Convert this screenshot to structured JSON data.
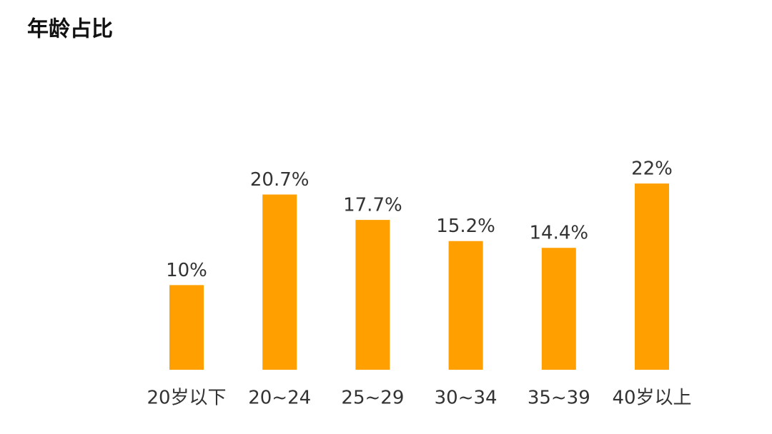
{
  "chart_data": {
    "type": "bar",
    "title": "年龄占比",
    "categories": [
      "20岁以下",
      "20~24",
      "25~29",
      "30~34",
      "35~39",
      "40岁以上"
    ],
    "values": [
      10,
      20.7,
      17.7,
      15.2,
      14.4,
      22
    ],
    "value_labels": [
      "10%",
      "20.7%",
      "17.7%",
      "15.2%",
      "14.4%",
      "22%"
    ],
    "color": "#ffa000"
  }
}
